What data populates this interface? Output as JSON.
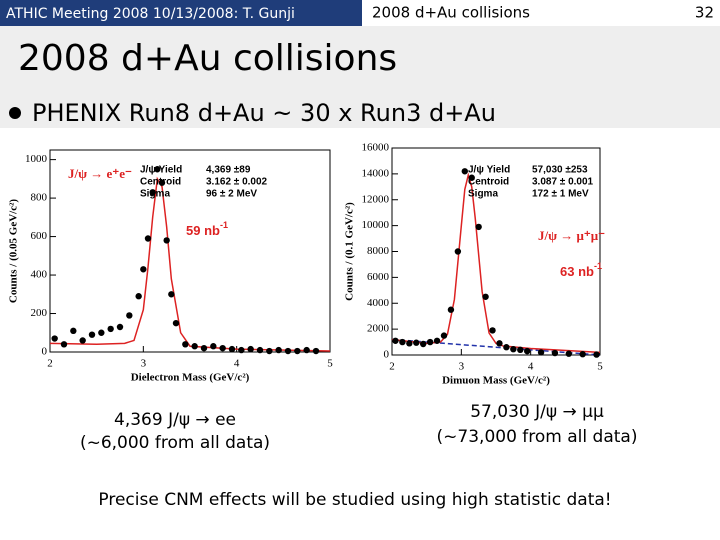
{
  "header": {
    "left": "ATHIC Meeting 2008 10/13/2008: T. Gunji",
    "center": "2008 d+Au collisions",
    "page": "32"
  },
  "title": "2008 d+Au collisions",
  "bullet": "PHENIX Run8 d+Au ~ 30 x Run3 d+Au",
  "plots": [
    {
      "type": "scatter",
      "x_label": "Dielectron Mass (GeV/c²)",
      "y_label": "Counts / (0.05 GeV/c²)",
      "xlim": [
        2,
        5
      ],
      "xticks": [
        2,
        3,
        4,
        5
      ],
      "ylim": [
        0,
        1050
      ],
      "yticks": [
        0,
        200,
        400,
        600,
        800,
        1000
      ],
      "decay": "J/ψ → e⁺e⁻",
      "stats": [
        [
          "J/ψ Yield",
          "4,369 ±89"
        ],
        [
          "Centroid",
          "3.162 ± 0.002"
        ],
        [
          "Sigma",
          "96 ± 2 MeV"
        ]
      ],
      "luminosity": {
        "text": "59 nb",
        "sup": "-1"
      },
      "color": "#000000",
      "fit_color": "#dd2222",
      "x": [
        2.05,
        2.15,
        2.25,
        2.35,
        2.45,
        2.55,
        2.65,
        2.75,
        2.85,
        2.95,
        3.0,
        3.05,
        3.1,
        3.15,
        3.2,
        3.25,
        3.3,
        3.35,
        3.45,
        3.55,
        3.65,
        3.75,
        3.85,
        3.95,
        4.05,
        4.15,
        4.25,
        4.35,
        4.45,
        4.55,
        4.65,
        4.75,
        4.85
      ],
      "values": [
        70,
        40,
        110,
        60,
        90,
        100,
        120,
        130,
        190,
        290,
        430,
        590,
        830,
        950,
        880,
        580,
        300,
        150,
        40,
        30,
        20,
        30,
        20,
        15,
        10,
        15,
        10,
        5,
        10,
        5,
        5,
        10,
        5
      ],
      "fit": {
        "x": [
          2.0,
          2.5,
          2.8,
          2.9,
          3.0,
          3.05,
          3.1,
          3.15,
          3.2,
          3.25,
          3.3,
          3.4,
          3.5,
          4.0,
          5.0
        ],
        "values": [
          45,
          40,
          45,
          60,
          220,
          440,
          700,
          900,
          860,
          650,
          380,
          100,
          30,
          15,
          5
        ]
      }
    },
    {
      "type": "scatter",
      "x_label": "Dimuon Mass (GeV/c²)",
      "y_label": "Counts / (0.1 GeV/c²)",
      "xlim": [
        2,
        5
      ],
      "xticks": [
        2,
        3,
        4,
        5
      ],
      "ylim": [
        0,
        16000
      ],
      "yticks": [
        0,
        2000,
        4000,
        6000,
        8000,
        10000,
        12000,
        14000,
        16000
      ],
      "decay": "J/ψ → μ⁺μ⁻",
      "stats": [
        [
          "J/ψ Yield",
          "57,030 ±253"
        ],
        [
          "Centroid",
          "3.087 ± 0.001"
        ],
        [
          "Sigma",
          "172 ± 1 MeV"
        ]
      ],
      "luminosity": {
        "text": "63 nb",
        "sup": "-1"
      },
      "color": "#000000",
      "fit_color": "#dd2222",
      "background_color": "#2233aa",
      "x": [
        2.05,
        2.15,
        2.25,
        2.35,
        2.45,
        2.55,
        2.65,
        2.75,
        2.85,
        2.95,
        3.05,
        3.15,
        3.25,
        3.35,
        3.45,
        3.55,
        3.65,
        3.75,
        3.85,
        3.95,
        4.15,
        4.35,
        4.55,
        4.75,
        4.95
      ],
      "values": [
        1100,
        1000,
        900,
        950,
        850,
        1000,
        1100,
        1500,
        3500,
        8000,
        14200,
        13700,
        9900,
        4500,
        1900,
        900,
        600,
        450,
        400,
        300,
        200,
        150,
        100,
        60,
        30
      ],
      "fit": {
        "x": [
          2.0,
          2.5,
          2.7,
          2.8,
          2.9,
          3.0,
          3.05,
          3.1,
          3.15,
          3.2,
          3.3,
          3.4,
          3.5,
          3.6,
          4.0,
          5.0
        ],
        "values": [
          1200,
          900,
          1000,
          1600,
          4300,
          10000,
          12800,
          13900,
          13000,
          10600,
          4900,
          1700,
          900,
          700,
          500,
          200
        ]
      },
      "background": {
        "x": [
          2.0,
          5.0
        ],
        "values": [
          1200,
          0
        ]
      }
    }
  ],
  "captions": [
    [
      "4,369 J/ψ → ee",
      "(~6,000 from all data)"
    ],
    [
      "57,030 J/ψ → μμ",
      "(~73,000 from all data)"
    ]
  ],
  "footer": "Precise CNM effects will be studied using high statistic data!"
}
